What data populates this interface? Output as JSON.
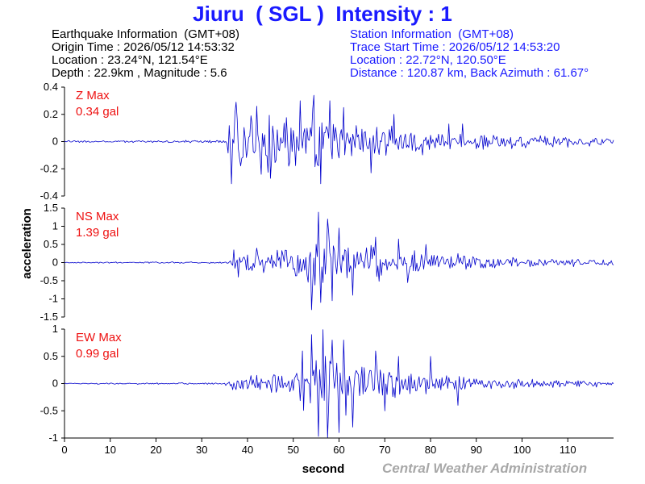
{
  "header": {
    "title": "Jiuru  ( SGL )  Intensity : 1"
  },
  "earthquake_info": {
    "heading": "Earthquake Information  (GMT+08)",
    "origin_time": "Origin Time : 2026/05/12 14:53:32",
    "location": "Location : 23.24°N, 121.54°E",
    "depth_magnitude": "Depth : 22.9km , Magnitude : 5.6"
  },
  "station_info": {
    "heading": "Station Information  (GMT+08)",
    "trace_start": "Trace Start Time : 2026/05/12 14:53:20",
    "location": "Location : 22.72°N, 120.50°E",
    "distance": "Distance : 120.87 km, Back Azimuth : 61.67°"
  },
  "credit": "Central Weather Administration",
  "colors": {
    "title": "#1a1aff",
    "trace": "#0000cc",
    "max_label": "#ee1111",
    "credit": "#a8a8a8",
    "axis": "#000000"
  },
  "chart_data": {
    "type": "line",
    "xlabel": "second",
    "ylabel": "acceleration",
    "xlim": [
      0,
      120
    ],
    "xticks": [
      0,
      10,
      20,
      30,
      40,
      50,
      60,
      70,
      80,
      90,
      100,
      110
    ],
    "x_tick_labels": [
      "0",
      "10",
      "20",
      "30",
      "40",
      "50",
      "60",
      "70",
      "80",
      "90",
      "100",
      "110"
    ],
    "grid": false,
    "sample_interval_s": 0.25,
    "panels": [
      {
        "component": "Z",
        "max_label": "Z Max",
        "max_value_label": "0.34 gal",
        "ylim": [
          -0.4,
          0.4
        ],
        "yticks": [
          -0.4,
          -0.2,
          0,
          0.2,
          0.4
        ],
        "y_tick_labels": [
          "-0.4",
          "-0.2",
          "0",
          "0.2",
          "0.4"
        ],
        "envelope": [
          [
            0,
            0.008
          ],
          [
            35,
            0.012
          ],
          [
            36,
            0.26
          ],
          [
            38,
            0.27
          ],
          [
            44,
            0.25
          ],
          [
            52,
            0.25
          ],
          [
            55,
            0.3
          ],
          [
            58,
            0.22
          ],
          [
            65,
            0.16
          ],
          [
            75,
            0.13
          ],
          [
            85,
            0.09
          ],
          [
            100,
            0.055
          ],
          [
            120,
            0.035
          ]
        ],
        "peaks": [
          [
            36.5,
            -0.31
          ],
          [
            37.5,
            0.29
          ],
          [
            42,
            0.26
          ],
          [
            45,
            -0.27
          ],
          [
            51.5,
            0.3
          ],
          [
            54.5,
            0.34
          ],
          [
            56,
            -0.31
          ],
          [
            58,
            0.3
          ],
          [
            61,
            0.25
          ],
          [
            67,
            -0.23
          ],
          [
            72,
            0.2
          ],
          [
            84,
            0.13
          ],
          [
            87,
            0.13
          ]
        ]
      },
      {
        "component": "NS",
        "max_label": "NS Max",
        "max_value_label": "1.39 gal",
        "ylim": [
          -1.5,
          1.5
        ],
        "yticks": [
          -1.5,
          -1,
          -0.5,
          0,
          0.5,
          1,
          1.5
        ],
        "y_tick_labels": [
          "-1.5",
          "-1",
          "-0.5",
          "0",
          "0.5",
          "1",
          "1.5"
        ],
        "envelope": [
          [
            0,
            0.02
          ],
          [
            36,
            0.03
          ],
          [
            37,
            0.28
          ],
          [
            42,
            0.35
          ],
          [
            50,
            0.45
          ],
          [
            53,
            0.9
          ],
          [
            55,
            1.15
          ],
          [
            58,
            0.9
          ],
          [
            62,
            0.75
          ],
          [
            68,
            0.6
          ],
          [
            75,
            0.38
          ],
          [
            85,
            0.28
          ],
          [
            100,
            0.16
          ],
          [
            120,
            0.1
          ]
        ],
        "peaks": [
          [
            37,
            0.35
          ],
          [
            38,
            -0.4
          ],
          [
            42,
            0.4
          ],
          [
            54,
            -1.3
          ],
          [
            55.5,
            1.39
          ],
          [
            56,
            -1.1
          ],
          [
            57.5,
            1.2
          ],
          [
            58.5,
            -1.05
          ],
          [
            60,
            0.95
          ],
          [
            63,
            -0.9
          ],
          [
            68,
            0.7
          ],
          [
            73,
            0.65
          ],
          [
            75,
            -0.55
          ],
          [
            79,
            0.5
          ]
        ]
      },
      {
        "component": "EW",
        "max_label": "EW Max",
        "max_value_label": "0.99 gal",
        "ylim": [
          -1,
          1
        ],
        "yticks": [
          -1,
          -0.5,
          0,
          0.5,
          1
        ],
        "y_tick_labels": [
          "-1",
          "-0.5",
          "0",
          "0.5",
          "1"
        ],
        "envelope": [
          [
            0,
            0.012
          ],
          [
            35,
            0.02
          ],
          [
            36,
            0.14
          ],
          [
            42,
            0.18
          ],
          [
            50,
            0.35
          ],
          [
            53,
            0.7
          ],
          [
            56,
            0.85
          ],
          [
            58,
            0.75
          ],
          [
            62,
            0.6
          ],
          [
            66,
            0.5
          ],
          [
            72,
            0.35
          ],
          [
            82,
            0.2
          ],
          [
            100,
            0.1
          ],
          [
            120,
            0.07
          ]
        ],
        "peaks": [
          [
            52,
            0.6
          ],
          [
            54,
            0.9
          ],
          [
            55.5,
            -0.97
          ],
          [
            56.5,
            0.99
          ],
          [
            57.5,
            -1.0
          ],
          [
            58.5,
            0.8
          ],
          [
            60,
            -0.9
          ],
          [
            61,
            0.8
          ],
          [
            63,
            -0.8
          ],
          [
            68,
            0.6
          ],
          [
            70,
            -0.5
          ],
          [
            73,
            0.5
          ],
          [
            80,
            0.5
          ],
          [
            86,
            -0.4
          ]
        ]
      }
    ]
  }
}
